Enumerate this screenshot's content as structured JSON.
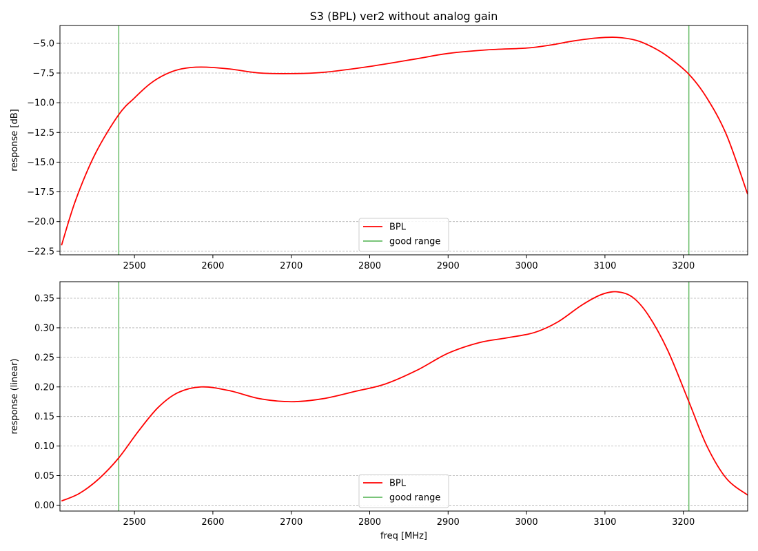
{
  "title": "S3 (BPL)   ver2   without analog gain",
  "colors": {
    "series": "#ff0000",
    "marker": "#66bb66",
    "grid": "#b0b0b0"
  },
  "chart_data": [
    {
      "type": "line",
      "ylabel": "response [dB]",
      "xlabel": "",
      "xlim": [
        2405,
        3282
      ],
      "ylim": [
        -22.8,
        -3.5
      ],
      "xticks": [
        2500,
        2600,
        2700,
        2800,
        2900,
        3000,
        3100,
        3200
      ],
      "yticks": [
        -22.5,
        -20.0,
        -17.5,
        -15.0,
        -12.5,
        -10.0,
        -7.5,
        -5.0
      ],
      "grid": "y-dashed",
      "legend_position": "bottom-center",
      "series": [
        {
          "name": "BPL",
          "color": "#ff0000",
          "x": [
            2407,
            2425,
            2450,
            2480,
            2500,
            2520,
            2540,
            2560,
            2585,
            2620,
            2660,
            2700,
            2740,
            2800,
            2860,
            2900,
            2950,
            3000,
            3030,
            3060,
            3090,
            3115,
            3140,
            3160,
            3180,
            3207,
            3230,
            3255,
            3282
          ],
          "y": [
            -22.0,
            -18.2,
            -14.3,
            -11.0,
            -9.6,
            -8.4,
            -7.6,
            -7.15,
            -7.0,
            -7.15,
            -7.5,
            -7.55,
            -7.45,
            -6.95,
            -6.3,
            -5.85,
            -5.55,
            -5.4,
            -5.15,
            -4.8,
            -4.55,
            -4.5,
            -4.75,
            -5.3,
            -6.1,
            -7.6,
            -9.6,
            -12.7,
            -17.7
          ]
        }
      ],
      "vlines": {
        "name": "good range",
        "color": "#66bb66",
        "x": [
          2480,
          3207
        ]
      }
    },
    {
      "type": "line",
      "ylabel": "response (linear)",
      "xlabel": "freq [MHz]",
      "xlim": [
        2405,
        3282
      ],
      "ylim": [
        -0.01,
        0.378
      ],
      "xticks": [
        2500,
        2600,
        2700,
        2800,
        2900,
        3000,
        3100,
        3200
      ],
      "yticks": [
        0.0,
        0.05,
        0.1,
        0.15,
        0.2,
        0.25,
        0.3,
        0.35
      ],
      "grid": "y-dashed",
      "legend_position": "bottom-center",
      "series": [
        {
          "name": "BPL",
          "color": "#ff0000",
          "x": [
            2407,
            2430,
            2455,
            2480,
            2505,
            2530,
            2555,
            2585,
            2620,
            2660,
            2700,
            2740,
            2780,
            2820,
            2860,
            2900,
            2940,
            2975,
            3010,
            3040,
            3070,
            3095,
            3115,
            3135,
            3155,
            3180,
            3207,
            3230,
            3255,
            3282
          ],
          "y": [
            0.007,
            0.02,
            0.045,
            0.08,
            0.125,
            0.165,
            0.19,
            0.2,
            0.194,
            0.18,
            0.175,
            0.18,
            0.192,
            0.205,
            0.228,
            0.257,
            0.275,
            0.283,
            0.292,
            0.31,
            0.338,
            0.356,
            0.361,
            0.352,
            0.322,
            0.262,
            0.175,
            0.1,
            0.045,
            0.017
          ]
        }
      ],
      "vlines": {
        "name": "good range",
        "color": "#66bb66",
        "x": [
          2480,
          3207
        ]
      }
    }
  ]
}
